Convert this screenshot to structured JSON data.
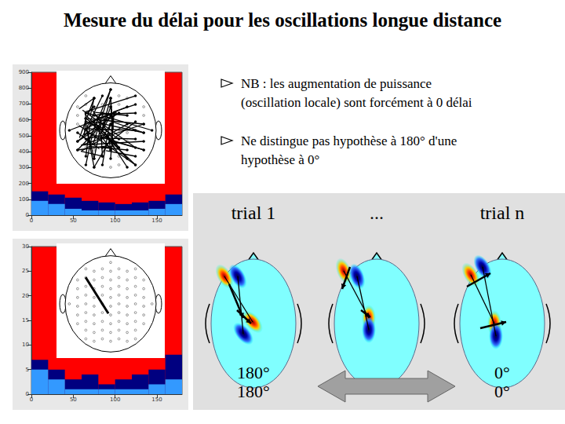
{
  "title": "Mesure du délai pour les oscillations longue distance",
  "bullets": [
    [
      "NB : les augmentation de puissance",
      "(oscillation locale) sont forcément à 0 délai"
    ],
    [
      "Ne distingue pas hypothèse à 180° d'une",
      "hypothèse à 0°"
    ]
  ],
  "trials": [
    {
      "label": "trial 1",
      "phases": [
        "180°",
        "180°"
      ]
    },
    {
      "label": "..."
    },
    {
      "label": "trial n",
      "phases": [
        "0°",
        "0°"
      ]
    }
  ],
  "chart_data": [
    {
      "type": "bar",
      "stacked": true,
      "bins": [
        0,
        20,
        40,
        60,
        80,
        100,
        120,
        140,
        160,
        180
      ],
      "series": [
        {
          "color": "#000080",
          "values": [
            150,
            130,
            110,
            90,
            80,
            70,
            80,
            90,
            130
          ]
        },
        {
          "color": "#3399ff",
          "values": [
            90,
            70,
            40,
            30,
            30,
            30,
            30,
            40,
            70
          ]
        }
      ],
      "xlim": [
        0,
        180
      ],
      "xticks": [
        0,
        50,
        100,
        150
      ],
      "ylim": [
        0,
        900
      ],
      "yticks": [
        0,
        100,
        200,
        300,
        400,
        500,
        600,
        700,
        800,
        900
      ]
    },
    {
      "type": "bar",
      "stacked": true,
      "bins": [
        0,
        20,
        40,
        60,
        80,
        100,
        120,
        140,
        160,
        180
      ],
      "series": [
        {
          "color": "#000080",
          "values": [
            7,
            5,
            3,
            4,
            2,
            3,
            4,
            5,
            8
          ]
        },
        {
          "color": "#3399ff",
          "values": [
            5,
            3,
            1,
            1,
            1,
            1,
            1,
            2,
            3
          ]
        }
      ],
      "xlim": [
        0,
        180
      ],
      "xticks": [
        0,
        50,
        100,
        150
      ],
      "ylim": [
        0,
        30
      ],
      "yticks": [
        0,
        5,
        10,
        15,
        20,
        25,
        30
      ]
    }
  ]
}
